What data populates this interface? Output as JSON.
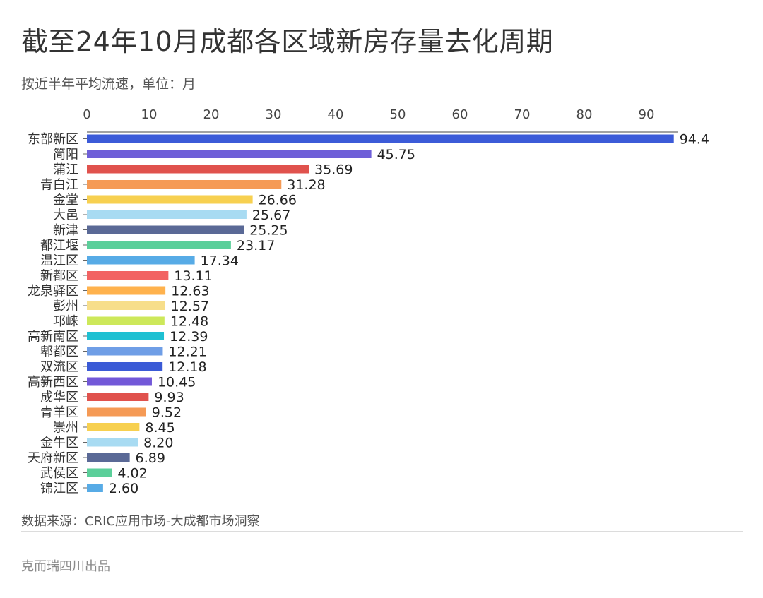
{
  "title": "截至24年10月成都各区域新房存量去化周期",
  "subtitle": "按近半年平均流速，单位：月",
  "source": "数据来源：CRIC应用市场-大成都市场洞察",
  "footer": "克而瑞四川出品",
  "chart_data": {
    "type": "bar",
    "orientation": "horizontal",
    "x_axis_position": "top",
    "xlim": [
      0,
      95
    ],
    "xticks": [
      0,
      10,
      20,
      30,
      40,
      50,
      60,
      70,
      80,
      90
    ],
    "grid": false,
    "categories": [
      "东部新区",
      "简阳",
      "蒲江",
      "青白江",
      "金堂",
      "大邑",
      "新津",
      "都江堰",
      "温江区",
      "新都区",
      "龙泉驿区",
      "彭州",
      "邛崃",
      "高新南区",
      "郫都区",
      "双流区",
      "高新西区",
      "成华区",
      "青羊区",
      "崇州",
      "金牛区",
      "天府新区",
      "武侯区",
      "锦江区"
    ],
    "values": [
      94.4,
      45.75,
      35.69,
      31.28,
      26.66,
      25.67,
      25.25,
      23.17,
      17.34,
      13.11,
      12.63,
      12.57,
      12.48,
      12.39,
      12.21,
      12.18,
      10.45,
      9.93,
      9.52,
      8.45,
      8.2,
      6.89,
      4.02,
      2.6
    ],
    "value_labels": [
      "94.4",
      "45.75",
      "35.69",
      "31.28",
      "26.66",
      "25.67",
      "25.25",
      "23.17",
      "17.34",
      "13.11",
      "12.63",
      "12.57",
      "12.48",
      "12.39",
      "12.21",
      "12.18",
      "10.45",
      "9.93",
      "9.52",
      "8.45",
      "8.20",
      "6.89",
      "4.02",
      "2.60"
    ],
    "colors": [
      "#3c5bd8",
      "#6e5fd8",
      "#e0524d",
      "#f59a55",
      "#f7d050",
      "#a8dbf2",
      "#5a6996",
      "#5bcf9a",
      "#57abe6",
      "#f26363",
      "#ffb24d",
      "#f7de8a",
      "#cde85a",
      "#1ec0d2",
      "#6f9ee6",
      "#3a5ad6",
      "#7258d8",
      "#e0524d",
      "#f59a55",
      "#f7d050",
      "#a8dbf2",
      "#5a6996",
      "#5bcf9a",
      "#57abe6"
    ]
  }
}
